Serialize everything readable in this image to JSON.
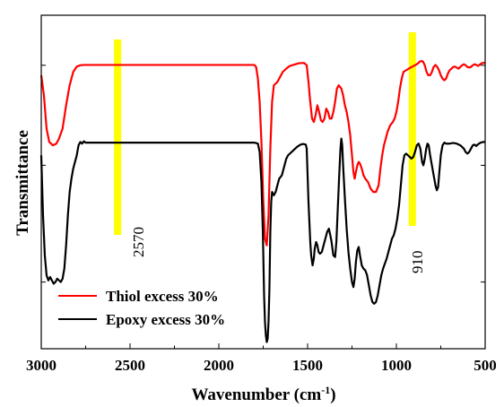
{
  "chart_data": {
    "type": "line",
    "xlabel": "Wavenumber (cm",
    "xlabel_sup": "-1",
    "xlabel_close": ")",
    "ylabel": "Transmittance",
    "xlim": [
      3000,
      500
    ],
    "x_reversed": true,
    "x_ticks": [
      3000,
      2500,
      2000,
      1500,
      1000,
      500
    ],
    "ylim": [
      0,
      100
    ],
    "y_tick_labels": false,
    "grid": false,
    "legend_position": "bottom-left",
    "highlight_color": "#ffff00",
    "series": [
      {
        "name": "Thiol excess 30%",
        "color": "#ff0000",
        "points": [
          [
            3000,
            82
          ],
          [
            2985,
            76
          ],
          [
            2970,
            66
          ],
          [
            2955,
            62
          ],
          [
            2935,
            61
          ],
          [
            2915,
            61.5
          ],
          [
            2900,
            63
          ],
          [
            2880,
            66
          ],
          [
            2860,
            73
          ],
          [
            2840,
            79
          ],
          [
            2820,
            83
          ],
          [
            2800,
            84.6
          ],
          [
            2780,
            85
          ],
          [
            2760,
            85.1
          ],
          [
            2500,
            85.1
          ],
          [
            2000,
            85.1
          ],
          [
            1800,
            85.1
          ],
          [
            1790,
            84.5
          ],
          [
            1780,
            81
          ],
          [
            1770,
            74
          ],
          [
            1760,
            62
          ],
          [
            1750,
            45
          ],
          [
            1740,
            33
          ],
          [
            1730,
            31
          ],
          [
            1720,
            40
          ],
          [
            1710,
            60
          ],
          [
            1700,
            74
          ],
          [
            1690,
            79
          ],
          [
            1670,
            80
          ],
          [
            1650,
            82
          ],
          [
            1640,
            83
          ],
          [
            1620,
            84
          ],
          [
            1600,
            84.8
          ],
          [
            1550,
            85.6
          ],
          [
            1520,
            85.7
          ],
          [
            1505,
            85
          ],
          [
            1495,
            80
          ],
          [
            1485,
            74
          ],
          [
            1475,
            69
          ],
          [
            1465,
            68
          ],
          [
            1455,
            70
          ],
          [
            1445,
            73
          ],
          [
            1435,
            71
          ],
          [
            1425,
            68.5
          ],
          [
            1415,
            68
          ],
          [
            1405,
            69
          ],
          [
            1395,
            72
          ],
          [
            1385,
            71
          ],
          [
            1375,
            69
          ],
          [
            1365,
            69
          ],
          [
            1355,
            71
          ],
          [
            1345,
            74
          ],
          [
            1335,
            78
          ],
          [
            1325,
            79
          ],
          [
            1310,
            78
          ],
          [
            1300,
            76
          ],
          [
            1290,
            73
          ],
          [
            1280,
            71
          ],
          [
            1270,
            68
          ],
          [
            1260,
            64
          ],
          [
            1250,
            58
          ],
          [
            1242,
            53
          ],
          [
            1235,
            51
          ],
          [
            1228,
            53
          ],
          [
            1220,
            55
          ],
          [
            1212,
            56
          ],
          [
            1205,
            55.5
          ],
          [
            1195,
            54
          ],
          [
            1185,
            52
          ],
          [
            1175,
            51
          ],
          [
            1160,
            50
          ],
          [
            1145,
            48
          ],
          [
            1130,
            47
          ],
          [
            1115,
            47
          ],
          [
            1100,
            49
          ],
          [
            1090,
            54
          ],
          [
            1080,
            58
          ],
          [
            1070,
            61
          ],
          [
            1060,
            63
          ],
          [
            1050,
            65
          ],
          [
            1035,
            67
          ],
          [
            1020,
            68
          ],
          [
            1010,
            69
          ],
          [
            1000,
            71
          ],
          [
            990,
            74
          ],
          [
            980,
            78
          ],
          [
            970,
            81
          ],
          [
            960,
            83
          ],
          [
            945,
            83.5
          ],
          [
            930,
            84
          ],
          [
            910,
            84.6
          ],
          [
            895,
            85
          ],
          [
            880,
            85.5
          ],
          [
            870,
            86
          ],
          [
            860,
            86.3
          ],
          [
            850,
            86.1
          ],
          [
            840,
            85
          ],
          [
            830,
            83
          ],
          [
            820,
            82
          ],
          [
            810,
            82
          ],
          [
            800,
            83
          ],
          [
            790,
            84.5
          ],
          [
            780,
            85.1
          ],
          [
            770,
            84.5
          ],
          [
            760,
            83.5
          ],
          [
            750,
            82
          ],
          [
            740,
            81
          ],
          [
            730,
            80.5
          ],
          [
            720,
            81
          ],
          [
            710,
            82.5
          ],
          [
            700,
            83.5
          ],
          [
            690,
            84
          ],
          [
            680,
            84.5
          ],
          [
            670,
            84.6
          ],
          [
            660,
            84.3
          ],
          [
            650,
            84
          ],
          [
            640,
            84.5
          ],
          [
            630,
            85
          ],
          [
            620,
            85.3
          ],
          [
            610,
            85
          ],
          [
            600,
            84.5
          ],
          [
            590,
            84.3
          ],
          [
            580,
            84.5
          ],
          [
            570,
            85
          ],
          [
            560,
            85.3
          ],
          [
            550,
            85.1
          ],
          [
            540,
            84.8
          ],
          [
            530,
            85.2
          ],
          [
            520,
            85.6
          ],
          [
            510,
            85.7
          ],
          [
            500,
            85.8
          ]
        ]
      },
      {
        "name": "Epoxy excess 30%",
        "color": "#000000",
        "points": [
          [
            3000,
            58
          ],
          [
            2990,
            40
          ],
          [
            2980,
            28
          ],
          [
            2970,
            22
          ],
          [
            2960,
            20.5
          ],
          [
            2950,
            21.5
          ],
          [
            2940,
            20.5
          ],
          [
            2930,
            19.5
          ],
          [
            2920,
            20
          ],
          [
            2910,
            21
          ],
          [
            2900,
            20.5
          ],
          [
            2890,
            20
          ],
          [
            2880,
            21
          ],
          [
            2870,
            24
          ],
          [
            2860,
            31
          ],
          [
            2850,
            40
          ],
          [
            2840,
            47
          ],
          [
            2830,
            51
          ],
          [
            2820,
            54
          ],
          [
            2810,
            56
          ],
          [
            2800,
            58
          ],
          [
            2790,
            61
          ],
          [
            2780,
            62
          ],
          [
            2770,
            61.5
          ],
          [
            2760,
            62.2
          ],
          [
            2750,
            61.8
          ],
          [
            2500,
            61.8
          ],
          [
            2000,
            61.8
          ],
          [
            1800,
            61.8
          ],
          [
            1780,
            61.5
          ],
          [
            1770,
            59
          ],
          [
            1760,
            50
          ],
          [
            1752,
            35
          ],
          [
            1745,
            16
          ],
          [
            1740,
            8
          ],
          [
            1735,
            4
          ],
          [
            1730,
            2
          ],
          [
            1725,
            3
          ],
          [
            1720,
            8
          ],
          [
            1715,
            18
          ],
          [
            1710,
            35
          ],
          [
            1705,
            44
          ],
          [
            1700,
            47
          ],
          [
            1695,
            46.5
          ],
          [
            1690,
            46
          ],
          [
            1680,
            47
          ],
          [
            1670,
            49
          ],
          [
            1660,
            51
          ],
          [
            1645,
            52
          ],
          [
            1630,
            55
          ],
          [
            1620,
            57
          ],
          [
            1610,
            58
          ],
          [
            1600,
            58.5
          ],
          [
            1580,
            59.5
          ],
          [
            1560,
            60.5
          ],
          [
            1540,
            61.2
          ],
          [
            1525,
            61.4
          ],
          [
            1510,
            61.2
          ],
          [
            1505,
            60
          ],
          [
            1500,
            52
          ],
          [
            1495,
            44
          ],
          [
            1490,
            38
          ],
          [
            1485,
            32
          ],
          [
            1480,
            28
          ],
          [
            1472,
            25
          ],
          [
            1465,
            27
          ],
          [
            1460,
            30
          ],
          [
            1452,
            32
          ],
          [
            1445,
            31
          ],
          [
            1438,
            29
          ],
          [
            1430,
            28.5
          ],
          [
            1420,
            29
          ],
          [
            1410,
            31
          ],
          [
            1400,
            33
          ],
          [
            1390,
            35
          ],
          [
            1380,
            36
          ],
          [
            1372,
            34
          ],
          [
            1365,
            32
          ],
          [
            1355,
            28
          ],
          [
            1345,
            27.5
          ],
          [
            1338,
            32
          ],
          [
            1330,
            42
          ],
          [
            1322,
            52
          ],
          [
            1315,
            60
          ],
          [
            1310,
            63
          ],
          [
            1305,
            61
          ],
          [
            1300,
            55
          ],
          [
            1290,
            45
          ],
          [
            1280,
            36
          ],
          [
            1270,
            29
          ],
          [
            1260,
            24
          ],
          [
            1250,
            20
          ],
          [
            1242,
            18.5
          ],
          [
            1235,
            21
          ],
          [
            1228,
            26
          ],
          [
            1220,
            29.5
          ],
          [
            1212,
            30.5
          ],
          [
            1205,
            28
          ],
          [
            1195,
            25
          ],
          [
            1185,
            24
          ],
          [
            1175,
            23.5
          ],
          [
            1165,
            22
          ],
          [
            1155,
            19
          ],
          [
            1145,
            16
          ],
          [
            1135,
            14
          ],
          [
            1125,
            13.5
          ],
          [
            1115,
            14
          ],
          [
            1105,
            16
          ],
          [
            1095,
            19
          ],
          [
            1085,
            22
          ],
          [
            1075,
            24
          ],
          [
            1065,
            25.5
          ],
          [
            1055,
            27
          ],
          [
            1045,
            29
          ],
          [
            1035,
            31
          ],
          [
            1025,
            33
          ],
          [
            1015,
            34
          ],
          [
            1005,
            36
          ],
          [
            995,
            39
          ],
          [
            985,
            43
          ],
          [
            975,
            49
          ],
          [
            965,
            55
          ],
          [
            955,
            58
          ],
          [
            945,
            58.5
          ],
          [
            935,
            58
          ],
          [
            925,
            57.5
          ],
          [
            915,
            57
          ],
          [
            905,
            57.5
          ],
          [
            895,
            59
          ],
          [
            885,
            61
          ],
          [
            875,
            61.5
          ],
          [
            865,
            60
          ],
          [
            855,
            56
          ],
          [
            848,
            55
          ],
          [
            840,
            57
          ],
          [
            832,
            60
          ],
          [
            825,
            61.5
          ],
          [
            818,
            61
          ],
          [
            810,
            58
          ],
          [
            800,
            55
          ],
          [
            790,
            52
          ],
          [
            780,
            49
          ],
          [
            772,
            47.5
          ],
          [
            765,
            48.5
          ],
          [
            758,
            53
          ],
          [
            750,
            58
          ],
          [
            740,
            61
          ],
          [
            730,
            61.8
          ],
          [
            720,
            61.5
          ],
          [
            700,
            61.5
          ],
          [
            680,
            61.7
          ],
          [
            660,
            61.5
          ],
          [
            640,
            61
          ],
          [
            620,
            60
          ],
          [
            610,
            59
          ],
          [
            600,
            58.5
          ],
          [
            590,
            59
          ],
          [
            580,
            60
          ],
          [
            570,
            61
          ],
          [
            560,
            61.2
          ],
          [
            550,
            60.8
          ],
          [
            540,
            61.3
          ],
          [
            525,
            61.8
          ],
          [
            510,
            62
          ],
          [
            500,
            62
          ]
        ]
      }
    ],
    "annotations": [
      {
        "x": 2570,
        "text": "2570"
      },
      {
        "x": 910,
        "text": "910"
      }
    ]
  }
}
